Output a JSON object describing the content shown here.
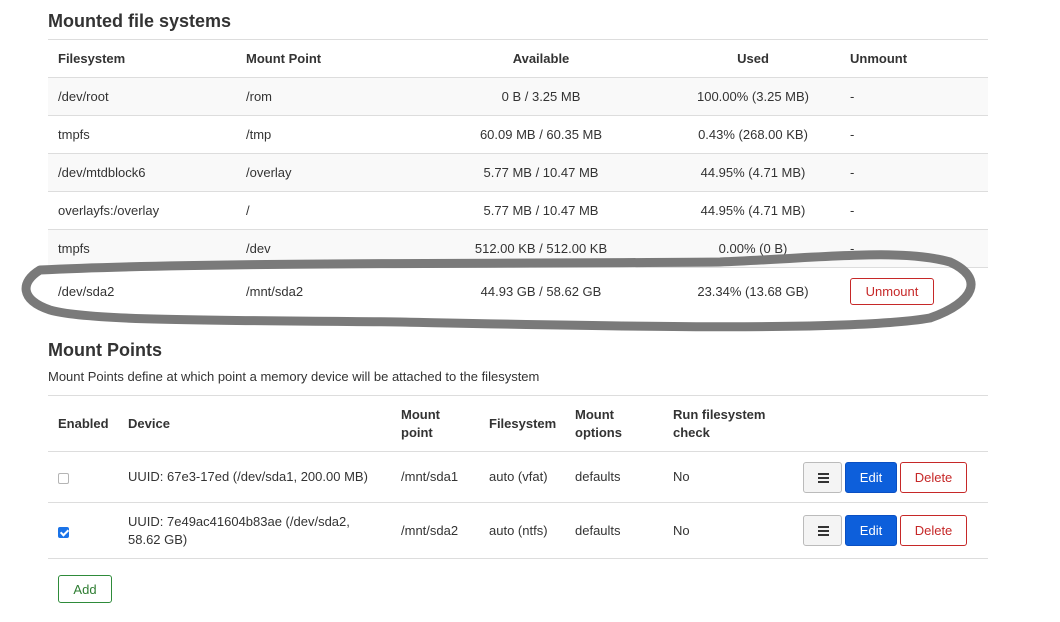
{
  "mounted": {
    "title": "Mounted file systems",
    "columns": [
      "Filesystem",
      "Mount Point",
      "Available",
      "Used",
      "Unmount"
    ],
    "rows": [
      {
        "filesystem": "/dev/root",
        "mount_point": "/rom",
        "available": "0 B / 3.25 MB",
        "used": "100.00% (3.25 MB)",
        "unmount": "-"
      },
      {
        "filesystem": "tmpfs",
        "mount_point": "/tmp",
        "available": "60.09 MB / 60.35 MB",
        "used": "0.43% (268.00 KB)",
        "unmount": "-"
      },
      {
        "filesystem": "/dev/mtdblock6",
        "mount_point": "/overlay",
        "available": "5.77 MB / 10.47 MB",
        "used": "44.95% (4.71 MB)",
        "unmount": "-"
      },
      {
        "filesystem": "overlayfs:/overlay",
        "mount_point": "/",
        "available": "5.77 MB / 10.47 MB",
        "used": "44.95% (4.71 MB)",
        "unmount": "-"
      },
      {
        "filesystem": "tmpfs",
        "mount_point": "/dev",
        "available": "512.00 KB / 512.00 KB",
        "used": "0.00% (0 B)",
        "unmount": "-"
      },
      {
        "filesystem": "/dev/sda2",
        "mount_point": "/mnt/sda2",
        "available": "44.93 GB / 58.62 GB",
        "used": "23.34% (13.68 GB)",
        "unmount": "Unmount"
      }
    ]
  },
  "mount_points": {
    "title": "Mount Points",
    "description": "Mount Points define at which point a memory device will be attached to the filesystem",
    "columns": {
      "enabled": "Enabled",
      "device": "Device",
      "mount_point_1": "Mount",
      "mount_point_2": "point",
      "filesystem": "Filesystem",
      "options_1": "Mount",
      "options_2": "options",
      "check_1": "Run filesystem",
      "check_2": "check"
    },
    "rows": [
      {
        "enabled": false,
        "device": "UUID: 67e3-17ed (/dev/sda1, 200.00 MB)",
        "mount_point": "/mnt/sda1",
        "filesystem": "auto (vfat)",
        "options": "defaults",
        "check": "No"
      },
      {
        "enabled": true,
        "device_1": "UUID: 7e49ac41604b83ae (/dev/sda2,",
        "device_2": "58.62 GB)",
        "mount_point": "/mnt/sda2",
        "filesystem": "auto (ntfs)",
        "options": "defaults",
        "check": "No"
      }
    ],
    "buttons": {
      "edit": "Edit",
      "delete": "Delete",
      "menu_icon": "hamburger-icon"
    },
    "add_label": "Add"
  },
  "colors": {
    "danger": "#c62828",
    "primary": "#0d5fdb",
    "success": "#2e7d32",
    "annotation": "#7a7a7a"
  }
}
